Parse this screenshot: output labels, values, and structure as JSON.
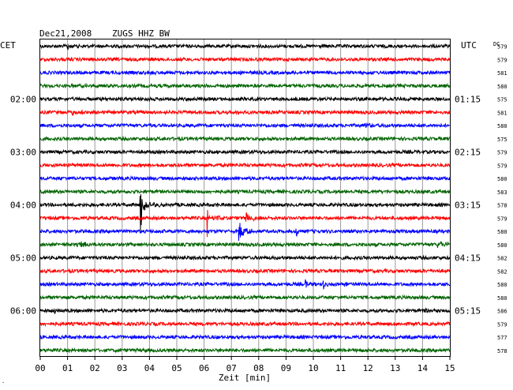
{
  "header": {
    "date": "Dec21,2008",
    "station": "ZUGS HHZ BW"
  },
  "chart_data": {
    "type": "line",
    "title": "Dec21,2008   ZUGS HHZ BW",
    "xlabel": "Zeit [min]",
    "xlim": [
      0,
      15
    ],
    "x_ticks": [
      "00",
      "01",
      "02",
      "03",
      "04",
      "05",
      "06",
      "07",
      "08",
      "09",
      "10",
      "11",
      "12",
      "13",
      "14",
      "15"
    ],
    "left_axis_label": "CET",
    "right_axis_label": "UTC",
    "dc_header": "DC",
    "left_hour_labels": [
      {
        "row": 4,
        "label": "02:00"
      },
      {
        "row": 8,
        "label": "03:00"
      },
      {
        "row": 12,
        "label": "04:00"
      },
      {
        "row": 16,
        "label": "05:00"
      },
      {
        "row": 20,
        "label": "06:00"
      }
    ],
    "right_hour_labels": [
      {
        "row": 4,
        "label": "01:15"
      },
      {
        "row": 8,
        "label": "02:15"
      },
      {
        "row": 12,
        "label": "03:15"
      },
      {
        "row": 16,
        "label": "04:15"
      },
      {
        "row": 20,
        "label": "05:15"
      }
    ],
    "series_colors": [
      "#000000",
      "#ff0000",
      "#0000ff",
      "#006400"
    ],
    "grid": true,
    "traces": [
      {
        "row": 0,
        "dc": "579",
        "events": [
          {
            "t": 1.0,
            "amp": 0.9,
            "type": "spike"
          }
        ]
      },
      {
        "row": 1,
        "dc": "579",
        "events": []
      },
      {
        "row": 2,
        "dc": "581",
        "events": [
          {
            "t": 3.85,
            "amp": 0.5,
            "type": "burst"
          }
        ]
      },
      {
        "row": 3,
        "dc": "580",
        "events": []
      },
      {
        "row": 4,
        "dc": "575",
        "events": []
      },
      {
        "row": 5,
        "dc": "581",
        "events": [
          {
            "t": 1.2,
            "amp": 0.6,
            "type": "burst"
          }
        ]
      },
      {
        "row": 6,
        "dc": "580",
        "events": [
          {
            "t": 11.85,
            "amp": 0.5,
            "type": "burst"
          }
        ]
      },
      {
        "row": 7,
        "dc": "575",
        "events": []
      },
      {
        "row": 8,
        "dc": "579",
        "events": []
      },
      {
        "row": 9,
        "dc": "579",
        "events": []
      },
      {
        "row": 10,
        "dc": "580",
        "events": []
      },
      {
        "row": 11,
        "dc": "583",
        "events": []
      },
      {
        "row": 12,
        "dc": "578",
        "events": [
          {
            "t": 3.65,
            "amp": 6.0,
            "type": "spike"
          },
          {
            "t": 3.85,
            "amp": 1.2,
            "type": "burst"
          }
        ]
      },
      {
        "row": 13,
        "dc": "579",
        "events": [
          {
            "t": 6.1,
            "amp": 3.5,
            "type": "spike"
          },
          {
            "t": 6.35,
            "amp": 0.9,
            "type": "burst"
          },
          {
            "t": 7.5,
            "amp": 2.4,
            "type": "spike"
          },
          {
            "t": 7.7,
            "amp": 0.5,
            "type": "burst"
          }
        ]
      },
      {
        "row": 14,
        "dc": "580",
        "events": [
          {
            "t": 7.3,
            "amp": 2.0,
            "type": "burst"
          },
          {
            "t": 9.35,
            "amp": 1.0,
            "type": "spike"
          }
        ]
      },
      {
        "row": 15,
        "dc": "580",
        "events": [
          {
            "t": 1.4,
            "amp": 1.0,
            "type": "burst"
          },
          {
            "t": 14.6,
            "amp": 0.8,
            "type": "burst"
          }
        ]
      },
      {
        "row": 16,
        "dc": "582",
        "events": []
      },
      {
        "row": 17,
        "dc": "582",
        "events": []
      },
      {
        "row": 18,
        "dc": "580",
        "events": [
          {
            "t": 9.7,
            "amp": 1.0,
            "type": "spike"
          },
          {
            "t": 10.35,
            "amp": 1.0,
            "type": "spike"
          },
          {
            "t": 11.1,
            "amp": 0.9,
            "type": "spike"
          }
        ]
      },
      {
        "row": 19,
        "dc": "580",
        "events": []
      },
      {
        "row": 20,
        "dc": "586",
        "events": [
          {
            "t": 0.5,
            "amp": 0.6,
            "type": "spike"
          },
          {
            "t": 14.05,
            "amp": 0.7,
            "type": "burst"
          }
        ]
      },
      {
        "row": 21,
        "dc": "579",
        "events": []
      },
      {
        "row": 22,
        "dc": "577",
        "events": []
      },
      {
        "row": 23,
        "dc": "578",
        "events": []
      }
    ]
  }
}
